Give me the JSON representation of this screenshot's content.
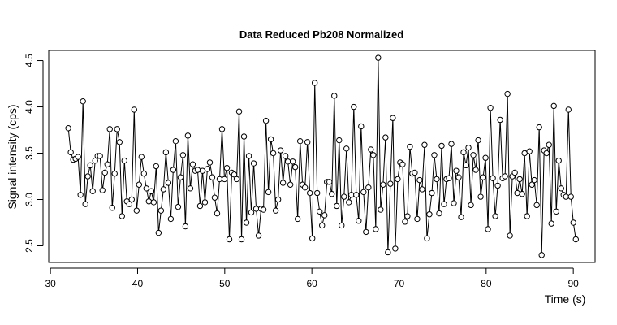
{
  "chart_data": {
    "type": "line",
    "markers": true,
    "title": "Data Reduced Pb208 Normalized",
    "x_label": "Time (s)",
    "y_label": "Signal intensity (cps)",
    "color": "#000000",
    "x": [
      32.05,
      32.33,
      32.61,
      32.89,
      33.17,
      33.45,
      33.73,
      34.01,
      34.29,
      34.57,
      34.85,
      35.13,
      35.41,
      35.69,
      35.97,
      36.25,
      36.53,
      36.81,
      37.09,
      37.37,
      37.65,
      37.93,
      38.21,
      38.49,
      38.77,
      39.05,
      39.33,
      39.61,
      39.89,
      40.17,
      40.45,
      40.73,
      41.01,
      41.29,
      41.57,
      41.85,
      42.13,
      42.41,
      42.69,
      42.97,
      43.25,
      43.53,
      43.81,
      44.09,
      44.37,
      44.65,
      44.93,
      45.21,
      45.49,
      45.77,
      46.05,
      46.33,
      46.61,
      46.89,
      47.17,
      47.45,
      47.73,
      48.01,
      48.29,
      48.57,
      48.85,
      49.13,
      49.41,
      49.69,
      49.97,
      50.25,
      50.53,
      50.81,
      51.09,
      51.37,
      51.65,
      51.93,
      52.21,
      52.49,
      52.77,
      53.05,
      53.33,
      53.61,
      53.89,
      54.17,
      54.45,
      54.73,
      55.01,
      55.29,
      55.57,
      55.85,
      56.13,
      56.41,
      56.69,
      56.97,
      57.25,
      57.53,
      57.81,
      58.09,
      58.37,
      58.65,
      58.93,
      59.21,
      59.49,
      59.77,
      60.05,
      60.33,
      60.61,
      60.89,
      61.17,
      61.45,
      61.73,
      62.01,
      62.29,
      62.57,
      62.85,
      63.13,
      63.41,
      63.69,
      63.97,
      64.25,
      64.53,
      64.81,
      65.09,
      65.37,
      65.65,
      65.93,
      66.21,
      66.49,
      66.77,
      67.05,
      67.33,
      67.61,
      67.89,
      68.17,
      68.45,
      68.73,
      69.01,
      69.29,
      69.57,
      69.85,
      70.13,
      70.41,
      70.69,
      70.97,
      71.25,
      71.53,
      71.81,
      72.09,
      72.37,
      72.65,
      72.93,
      73.21,
      73.49,
      73.77,
      74.05,
      74.33,
      74.61,
      74.89,
      75.17,
      75.45,
      75.73,
      76.01,
      76.29,
      76.57,
      76.85,
      77.13,
      77.41,
      77.69,
      77.97,
      78.25,
      78.53,
      78.81,
      79.09,
      79.37,
      79.65,
      79.93,
      80.21,
      80.49,
      80.77,
      81.05,
      81.33,
      81.61,
      81.89,
      82.17,
      82.45,
      82.73,
      83.01,
      83.29,
      83.57,
      83.85,
      84.13,
      84.41,
      84.69,
      84.97,
      85.25,
      85.53,
      85.81,
      86.09,
      86.37,
      86.65,
      86.93,
      87.21,
      87.49,
      87.77,
      88.05,
      88.33,
      88.61,
      88.89,
      89.17,
      89.45,
      89.73,
      90.01,
      90.29
    ],
    "values": [
      3.77,
      3.51,
      3.43,
      3.44,
      3.46,
      3.05,
      4.06,
      2.95,
      3.25,
      3.37,
      3.09,
      3.42,
      3.47,
      3.47,
      3.1,
      3.29,
      3.38,
      3.76,
      2.91,
      3.28,
      3.76,
      3.62,
      2.82,
      3.42,
      2.98,
      2.95,
      3.0,
      3.97,
      2.88,
      3.16,
      3.46,
      3.28,
      3.12,
      2.98,
      3.09,
      2.97,
      3.36,
      2.64,
      2.88,
      3.11,
      3.51,
      3.18,
      2.79,
      3.32,
      3.63,
      2.92,
      3.24,
      3.48,
      2.71,
      3.69,
      3.12,
      3.38,
      3.31,
      3.32,
      2.93,
      3.31,
      2.97,
      3.33,
      3.4,
      3.24,
      3.02,
      2.85,
      3.22,
      3.76,
      3.22,
      3.34,
      2.57,
      3.29,
      3.27,
      3.22,
      3.95,
      2.57,
      3.68,
      2.75,
      3.47,
      2.86,
      3.39,
      2.9,
      2.61,
      2.9,
      2.89,
      3.85,
      3.08,
      3.65,
      3.5,
      2.88,
      3.0,
      3.53,
      3.18,
      3.47,
      3.41,
      3.16,
      3.41,
      3.35,
      2.79,
      3.63,
      3.16,
      3.13,
      3.62,
      3.07,
      2.58,
      4.26,
      3.07,
      2.87,
      2.72,
      2.83,
      3.19,
      3.19,
      3.06,
      4.12,
      2.93,
      3.64,
      2.72,
      3.03,
      3.55,
      2.97,
      3.05,
      4.0,
      3.05,
      2.77,
      3.79,
      3.08,
      2.65,
      3.13,
      3.54,
      3.48,
      2.68,
      4.53,
      2.89,
      3.16,
      3.67,
      2.43,
      3.17,
      3.88,
      2.47,
      3.22,
      3.4,
      3.38,
      2.76,
      2.82,
      3.57,
      3.28,
      3.29,
      2.79,
      3.21,
      3.11,
      3.59,
      2.58,
      2.84,
      3.07,
      3.48,
      3.22,
      2.85,
      3.58,
      2.95,
      3.22,
      3.23,
      3.6,
      2.96,
      3.31,
      3.24,
      2.81,
      3.51,
      3.37,
      3.56,
      2.94,
      3.48,
      3.32,
      3.64,
      3.03,
      3.24,
      3.45,
      2.68,
      3.99,
      3.23,
      2.82,
      3.15,
      3.86,
      3.23,
      3.25,
      4.14,
      2.61,
      3.25,
      3.29,
      3.07,
      3.22,
      3.06,
      3.5,
      2.82,
      3.52,
      3.16,
      3.21,
      2.94,
      3.78,
      2.4,
      3.53,
      3.5,
      3.59,
      2.74,
      4.01,
      2.87,
      3.42,
      3.12,
      3.05,
      3.03,
      3.97,
      3.03,
      2.75,
      2.57
    ],
    "xlim": [
      29.8,
      92.5
    ],
    "xticks": [
      30,
      40,
      50,
      60,
      70,
      80,
      90
    ],
    "ylim": [
      2.32,
      4.61
    ],
    "yticks": [
      2.5,
      {
        "value": 3,
        "label": "3.0"
      },
      3.5,
      {
        "value": 4,
        "label": "4.0"
      },
      4.5
    ]
  }
}
